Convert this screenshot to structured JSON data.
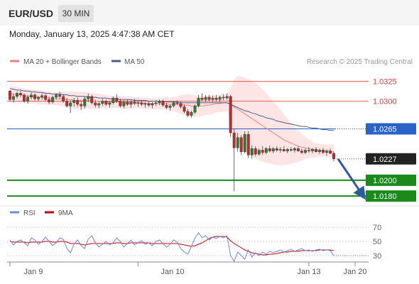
{
  "header": {
    "symbol": "EUR/USD",
    "timeframe": "30 MIN",
    "datetime": "Monday, January 13, 2025 4:47:38 AM CET"
  },
  "colors": {
    "candle_up": "#2e7d32",
    "candle_down": "#c62828",
    "ma20": "#f08080",
    "bollinger_fill": "#fde2e2",
    "ma50": "#4a5d8c",
    "resistance": "#e53935",
    "pivot": "#2a62c9",
    "support": "#1a8a1a",
    "arrow": "#2f5a9e",
    "rsi": "#6a89e0",
    "rsi_ma": "#cc0000",
    "grid": "#bbbbbb"
  },
  "chart_data": [
    {
      "type": "candlestick",
      "legend": [
        {
          "name": "MA 20 + Bollinger Bands",
          "color": "#f08080"
        },
        {
          "name": "MA 50",
          "color": "#4a5d8c"
        }
      ],
      "watermark": "Research © 2025 Trading Central",
      "ylim": [
        1.0172,
        1.034
      ],
      "levels": [
        {
          "label": "1.0325",
          "value": 1.0325,
          "kind": "resistance"
        },
        {
          "label": "1.0300",
          "value": 1.03,
          "kind": "resistance"
        },
        {
          "label": "1.0265",
          "value": 1.0265,
          "kind": "pivot"
        },
        {
          "label": "1.0227",
          "value": 1.0227,
          "kind": "last"
        },
        {
          "label": "1.0200",
          "value": 1.02,
          "kind": "support"
        },
        {
          "label": "1.0180",
          "value": 1.018,
          "kind": "support"
        }
      ],
      "forecast": {
        "from": 1.0227,
        "to": 1.0182
      },
      "candles": [
        [
          1.0313,
          1.0314,
          1.03,
          1.0302
        ],
        [
          1.0302,
          1.0309,
          1.0298,
          1.0306
        ],
        [
          1.0306,
          1.0312,
          1.0303,
          1.031
        ],
        [
          1.031,
          1.0313,
          1.0305,
          1.0308
        ],
        [
          1.0308,
          1.031,
          1.0298,
          1.03
        ],
        [
          1.03,
          1.0308,
          1.0297,
          1.0305
        ],
        [
          1.0305,
          1.0311,
          1.0302,
          1.0308
        ],
        [
          1.0308,
          1.031,
          1.0301,
          1.0303
        ],
        [
          1.0303,
          1.0307,
          1.03,
          1.0305
        ],
        [
          1.0305,
          1.031,
          1.0302,
          1.0307
        ],
        [
          1.0307,
          1.0309,
          1.03,
          1.0302
        ],
        [
          1.0302,
          1.0306,
          1.0296,
          1.0299
        ],
        [
          1.0299,
          1.0307,
          1.0297,
          1.0305
        ],
        [
          1.0305,
          1.031,
          1.0302,
          1.0308
        ],
        [
          1.0308,
          1.0312,
          1.0303,
          1.0306
        ],
        [
          1.0306,
          1.0309,
          1.0298,
          1.03
        ],
        [
          1.03,
          1.0304,
          1.0292,
          1.0294
        ],
        [
          1.0294,
          1.0301,
          1.0285,
          1.0298
        ],
        [
          1.0298,
          1.0304,
          1.0293,
          1.0301
        ],
        [
          1.0301,
          1.0305,
          1.0293,
          1.0296
        ],
        [
          1.0296,
          1.03,
          1.0289,
          1.0294
        ],
        [
          1.0294,
          1.0306,
          1.0291,
          1.0303
        ],
        [
          1.0303,
          1.031,
          1.0299,
          1.0306
        ],
        [
          1.0306,
          1.0308,
          1.0296,
          1.0298
        ],
        [
          1.0298,
          1.0302,
          1.0292,
          1.0295
        ],
        [
          1.0295,
          1.03,
          1.0291,
          1.0297
        ],
        [
          1.0297,
          1.0303,
          1.0294,
          1.03
        ],
        [
          1.03,
          1.0302,
          1.0294,
          1.0296
        ],
        [
          1.0296,
          1.03,
          1.0292,
          1.0298
        ],
        [
          1.0298,
          1.0306,
          1.0296,
          1.0304
        ],
        [
          1.0304,
          1.0309,
          1.0298,
          1.03
        ],
        [
          1.03,
          1.0303,
          1.0292,
          1.0294
        ],
        [
          1.0294,
          1.0301,
          1.0291,
          1.0299
        ],
        [
          1.0299,
          1.0302,
          1.0294,
          1.0296
        ],
        [
          1.0296,
          1.0301,
          1.0292,
          1.0299
        ],
        [
          1.0299,
          1.0303,
          1.0295,
          1.0297
        ],
        [
          1.0297,
          1.03,
          1.0293,
          1.0298
        ],
        [
          1.0298,
          1.0301,
          1.0294,
          1.0296
        ],
        [
          1.0296,
          1.0299,
          1.0292,
          1.0297
        ],
        [
          1.0297,
          1.03,
          1.0293,
          1.0295
        ],
        [
          1.0295,
          1.0299,
          1.0291,
          1.0297
        ],
        [
          1.0297,
          1.0301,
          1.0294,
          1.0298
        ],
        [
          1.0298,
          1.0302,
          1.0295,
          1.03
        ],
        [
          1.03,
          1.0302,
          1.0293,
          1.0295
        ],
        [
          1.0295,
          1.0298,
          1.029,
          1.0292
        ],
        [
          1.0292,
          1.0296,
          1.0288,
          1.0294
        ],
        [
          1.0294,
          1.03,
          1.0292,
          1.0298
        ],
        [
          1.0298,
          1.0301,
          1.0295,
          1.0297
        ],
        [
          1.0297,
          1.03,
          1.0291,
          1.0293
        ],
        [
          1.0293,
          1.0296,
          1.0285,
          1.0287
        ],
        [
          1.0287,
          1.029,
          1.028,
          1.0282
        ],
        [
          1.0282,
          1.0288,
          1.0279,
          1.0286
        ],
        [
          1.0286,
          1.0296,
          1.0284,
          1.0294
        ],
        [
          1.0294,
          1.0308,
          1.0292,
          1.0304
        ],
        [
          1.0304,
          1.031,
          1.03,
          1.0302
        ],
        [
          1.0302,
          1.0308,
          1.0299,
          1.0305
        ],
        [
          1.0305,
          1.0308,
          1.03,
          1.0302
        ],
        [
          1.0302,
          1.0307,
          1.0299,
          1.0304
        ],
        [
          1.0304,
          1.0308,
          1.03,
          1.0302
        ],
        [
          1.0302,
          1.0307,
          1.0299,
          1.0305
        ],
        [
          1.0305,
          1.0309,
          1.0301,
          1.0304
        ],
        [
          1.0304,
          1.031,
          1.0302,
          1.0306
        ],
        [
          1.0306,
          1.0308,
          1.0255,
          1.026
        ],
        [
          1.026,
          1.0265,
          1.0186,
          1.0241
        ],
        [
          1.0241,
          1.026,
          1.0236,
          1.0254
        ],
        [
          1.0254,
          1.0257,
          1.0232,
          1.0236
        ],
        [
          1.0236,
          1.0262,
          1.0234,
          1.0258
        ],
        [
          1.0258,
          1.0262,
          1.0228,
          1.0232
        ],
        [
          1.0232,
          1.0244,
          1.0227,
          1.024
        ],
        [
          1.024,
          1.0243,
          1.023,
          1.0233
        ],
        [
          1.0233,
          1.024,
          1.0231,
          1.0238
        ],
        [
          1.0238,
          1.0243,
          1.0232,
          1.0235
        ],
        [
          1.0235,
          1.0242,
          1.0233,
          1.024
        ],
        [
          1.024,
          1.0244,
          1.0235,
          1.0237
        ],
        [
          1.0237,
          1.0242,
          1.0234,
          1.024
        ],
        [
          1.024,
          1.0243,
          1.0236,
          1.0238
        ],
        [
          1.0238,
          1.0242,
          1.0235,
          1.0239
        ],
        [
          1.0239,
          1.0243,
          1.0236,
          1.0237
        ],
        [
          1.0237,
          1.0241,
          1.0234,
          1.0239
        ],
        [
          1.0239,
          1.0242,
          1.0236,
          1.0238
        ],
        [
          1.0238,
          1.0242,
          1.0235,
          1.024
        ],
        [
          1.024,
          1.0243,
          1.0236,
          1.0237
        ],
        [
          1.0237,
          1.024,
          1.0233,
          1.0235
        ],
        [
          1.0235,
          1.024,
          1.0233,
          1.0238
        ],
        [
          1.0238,
          1.0242,
          1.0235,
          1.0237
        ],
        [
          1.0237,
          1.0241,
          1.0234,
          1.0239
        ],
        [
          1.0239,
          1.0242,
          1.0235,
          1.0236
        ],
        [
          1.0236,
          1.024,
          1.0233,
          1.0238
        ],
        [
          1.0238,
          1.0241,
          1.0233,
          1.0235
        ],
        [
          1.0235,
          1.0239,
          1.0231,
          1.0237
        ],
        [
          1.0237,
          1.024,
          1.0233,
          1.0234
        ],
        [
          1.0234,
          1.0236,
          1.0224,
          1.0227
        ]
      ],
      "ma20": [
        1.031,
        1.0309,
        1.0308,
        1.0308,
        1.0307,
        1.0306,
        1.0306,
        1.0306,
        1.0305,
        1.0305,
        1.0304,
        1.0304,
        1.0303,
        1.0303,
        1.0303,
        1.0303,
        1.0302,
        1.0302,
        1.0301,
        1.0301,
        1.0301,
        1.0301,
        1.0301,
        1.03,
        1.03,
        1.03,
        1.03,
        1.0299,
        1.0299,
        1.0299,
        1.0299,
        1.0299,
        1.0298,
        1.0298,
        1.0298,
        1.0298,
        1.0298,
        1.0298,
        1.0297,
        1.0297,
        1.0297,
        1.0297,
        1.0297,
        1.0297,
        1.0297,
        1.0296,
        1.0296,
        1.0296,
        1.0296,
        1.0295,
        1.0295,
        1.0294,
        1.0294,
        1.0294,
        1.0294,
        1.0295,
        1.0295,
        1.0296,
        1.0297,
        1.0297,
        1.0298,
        1.0298,
        1.0296,
        1.0293,
        1.029,
        1.0287,
        1.0284,
        1.0281,
        1.0278,
        1.0275,
        1.0272,
        1.0269,
        1.0266,
        1.0263,
        1.026,
        1.0257,
        1.0254,
        1.0251,
        1.0249,
        1.0247,
        1.0245,
        1.0243,
        1.0242,
        1.0241,
        1.024,
        1.0239,
        1.0238,
        1.0238,
        1.0238,
        1.0237,
        1.0237,
        1.0236
      ],
      "bb_width": [
        0.001,
        0.001,
        0.001,
        0.0009,
        0.0009,
        0.0009,
        0.0009,
        0.0009,
        0.0009,
        0.0009,
        0.0008,
        0.0008,
        0.0008,
        0.0008,
        0.0009,
        0.0009,
        0.001,
        0.0011,
        0.0011,
        0.0011,
        0.0011,
        0.0011,
        0.001,
        0.001,
        0.001,
        0.0009,
        0.0009,
        0.0009,
        0.0008,
        0.0008,
        0.0008,
        0.0008,
        0.0008,
        0.0008,
        0.0008,
        0.0007,
        0.0007,
        0.0007,
        0.0007,
        0.0007,
        0.0007,
        0.0007,
        0.0007,
        0.0007,
        0.0008,
        0.0008,
        0.0009,
        0.001,
        0.0012,
        0.0013,
        0.0014,
        0.0014,
        0.0014,
        0.0013,
        0.0013,
        0.0012,
        0.0012,
        0.0012,
        0.0011,
        0.0011,
        0.0011,
        0.0011,
        0.002,
        0.0035,
        0.0042,
        0.0044,
        0.0046,
        0.0047,
        0.0048,
        0.0048,
        0.0047,
        0.0046,
        0.0044,
        0.0042,
        0.004,
        0.0038,
        0.0035,
        0.0032,
        0.0029,
        0.0026,
        0.0023,
        0.002,
        0.0017,
        0.0014,
        0.0012,
        0.001,
        0.0009,
        0.0008,
        0.0008,
        0.0008,
        0.0008,
        0.0009
      ],
      "ma50": [
        1.0316,
        1.0315,
        1.0314,
        1.0314,
        1.0313,
        1.0313,
        1.0312,
        1.0312,
        1.0311,
        1.0311,
        1.031,
        1.031,
        1.0309,
        1.0309,
        1.0309,
        1.0308,
        1.0308,
        1.0307,
        1.0307,
        1.0306,
        1.0306,
        1.0306,
        1.0305,
        1.0305,
        1.0305,
        1.0304,
        1.0304,
        1.0304,
        1.0303,
        1.0303,
        1.0303,
        1.0302,
        1.0302,
        1.0302,
        1.0302,
        1.0301,
        1.0301,
        1.0301,
        1.0301,
        1.03,
        1.03,
        1.03,
        1.03,
        1.03,
        1.0299,
        1.0299,
        1.0299,
        1.0299,
        1.0298,
        1.0298,
        1.0298,
        1.0298,
        1.0298,
        1.0298,
        1.0298,
        1.0298,
        1.0298,
        1.0298,
        1.0298,
        1.0298,
        1.0298,
        1.0298,
        1.0296,
        1.0294,
        1.0292,
        1.029,
        1.0288,
        1.0287,
        1.0285,
        1.0284,
        1.0282,
        1.0281,
        1.0279,
        1.0278,
        1.0277,
        1.0275,
        1.0274,
        1.0273,
        1.0272,
        1.0271,
        1.027,
        1.0269,
        1.0268,
        1.0268,
        1.0267,
        1.0266,
        1.0266,
        1.0265,
        1.0264,
        1.0264,
        1.0263,
        1.0263
      ]
    },
    {
      "type": "line",
      "legend": [
        {
          "name": "RSI",
          "color": "#6a89e0"
        },
        {
          "name": "9MA",
          "color": "#cc0000"
        }
      ],
      "ylim": [
        22,
        80
      ],
      "ticks": [
        70,
        50,
        30
      ],
      "rsi": [
        52,
        45,
        50,
        52,
        48,
        44,
        55,
        52,
        46,
        50,
        56,
        50,
        44,
        48,
        55,
        53,
        40,
        34,
        46,
        52,
        44,
        40,
        53,
        58,
        48,
        42,
        46,
        50,
        45,
        48,
        55,
        50,
        42,
        47,
        52,
        45,
        48,
        51,
        46,
        48,
        44,
        50,
        52,
        47,
        42,
        46,
        52,
        49,
        40,
        35,
        32,
        43,
        55,
        62,
        55,
        58,
        52,
        56,
        54,
        57,
        55,
        58,
        30,
        22,
        35,
        30,
        25,
        38,
        28,
        34,
        30,
        35,
        32,
        36,
        34,
        36,
        38,
        35,
        37,
        39,
        36,
        38,
        40,
        37,
        38,
        36,
        38,
        39,
        37,
        38,
        37,
        30
      ],
      "rsi_ma": [
        50,
        49,
        49,
        49,
        49,
        48,
        49,
        49,
        49,
        49,
        50,
        50,
        49,
        49,
        50,
        50,
        49,
        47,
        47,
        47,
        46,
        45,
        46,
        47,
        47,
        47,
        47,
        47,
        47,
        47,
        48,
        48,
        47,
        47,
        48,
        48,
        48,
        48,
        48,
        48,
        47,
        47,
        47,
        47,
        47,
        47,
        47,
        47,
        46,
        45,
        44,
        43,
        44,
        46,
        48,
        51,
        54,
        56,
        57,
        57,
        57,
        56,
        51,
        47,
        44,
        41,
        38,
        36,
        34,
        33,
        32,
        31,
        31,
        32,
        32,
        33,
        34,
        35,
        35,
        36,
        36,
        36,
        37,
        37,
        37,
        37,
        37,
        38,
        38,
        38,
        38,
        37
      ],
      "x_tick_labels": [
        "Jan 9",
        "Jan 10",
        "Jan 13",
        "Jan 20"
      ]
    }
  ]
}
